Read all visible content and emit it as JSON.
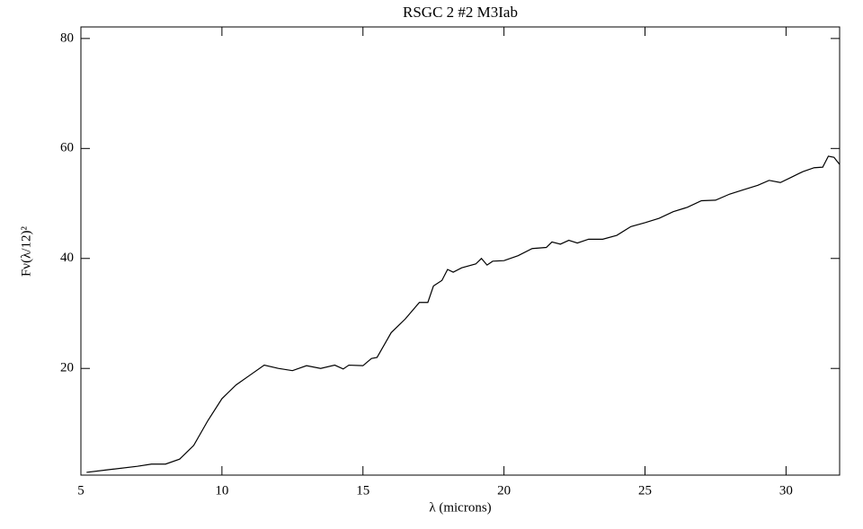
{
  "chart_data": {
    "type": "line",
    "title": "RSGC 2 #2 M3Iab",
    "x_label": "λ (microns)",
    "y_label": "Fν(λ/12)²",
    "x": [
      5.2,
      6,
      7,
      7.5,
      8,
      8.5,
      9,
      9.5,
      10,
      10.5,
      11,
      11.5,
      12,
      12.5,
      13,
      13.5,
      14,
      14.3,
      14.5,
      15,
      15.3,
      15.5,
      16,
      16.5,
      17,
      17.3,
      17.5,
      17.8,
      18,
      18.2,
      18.5,
      19,
      19.2,
      19.4,
      19.6,
      20,
      20.5,
      21,
      21.5,
      21.7,
      22,
      22.3,
      22.6,
      23,
      23.5,
      24,
      24.5,
      25,
      25.5,
      26,
      26.5,
      27,
      27.5,
      28,
      28.5,
      29,
      29.4,
      29.8,
      30.2,
      30.6,
      31,
      31.3,
      31.5,
      31.7,
      31.9
    ],
    "series": [
      {
        "name": "RSGC 2 #2",
        "color": "#000000",
        "values": [
          1.1,
          1.6,
          2.2,
          2.6,
          2.6,
          3.5,
          6.0,
          10.5,
          14.5,
          17.0,
          18.8,
          20.6,
          20.0,
          19.6,
          20.5,
          20.0,
          20.6,
          19.9,
          20.6,
          20.5,
          21.8,
          22.0,
          26.5,
          29.0,
          32.0,
          32.0,
          35.0,
          36.0,
          38.0,
          37.5,
          38.3,
          39.0,
          40.0,
          38.8,
          39.5,
          39.6,
          40.5,
          41.8,
          42.0,
          43.0,
          42.6,
          43.3,
          42.8,
          43.5,
          43.5,
          44.2,
          45.8,
          46.5,
          47.3,
          48.5,
          49.3,
          50.5,
          50.6,
          51.7,
          52.5,
          53.3,
          54.2,
          53.8,
          54.8,
          55.8,
          56.5,
          56.6,
          58.6,
          58.4,
          57.1
        ]
      }
    ],
    "xlim": [
      5,
      31.9
    ],
    "ylim": [
      0.6,
      82.1
    ],
    "xticks": [
      5,
      10,
      15,
      20,
      25,
      30
    ],
    "yticks": [
      20,
      40,
      60,
      80
    ]
  }
}
